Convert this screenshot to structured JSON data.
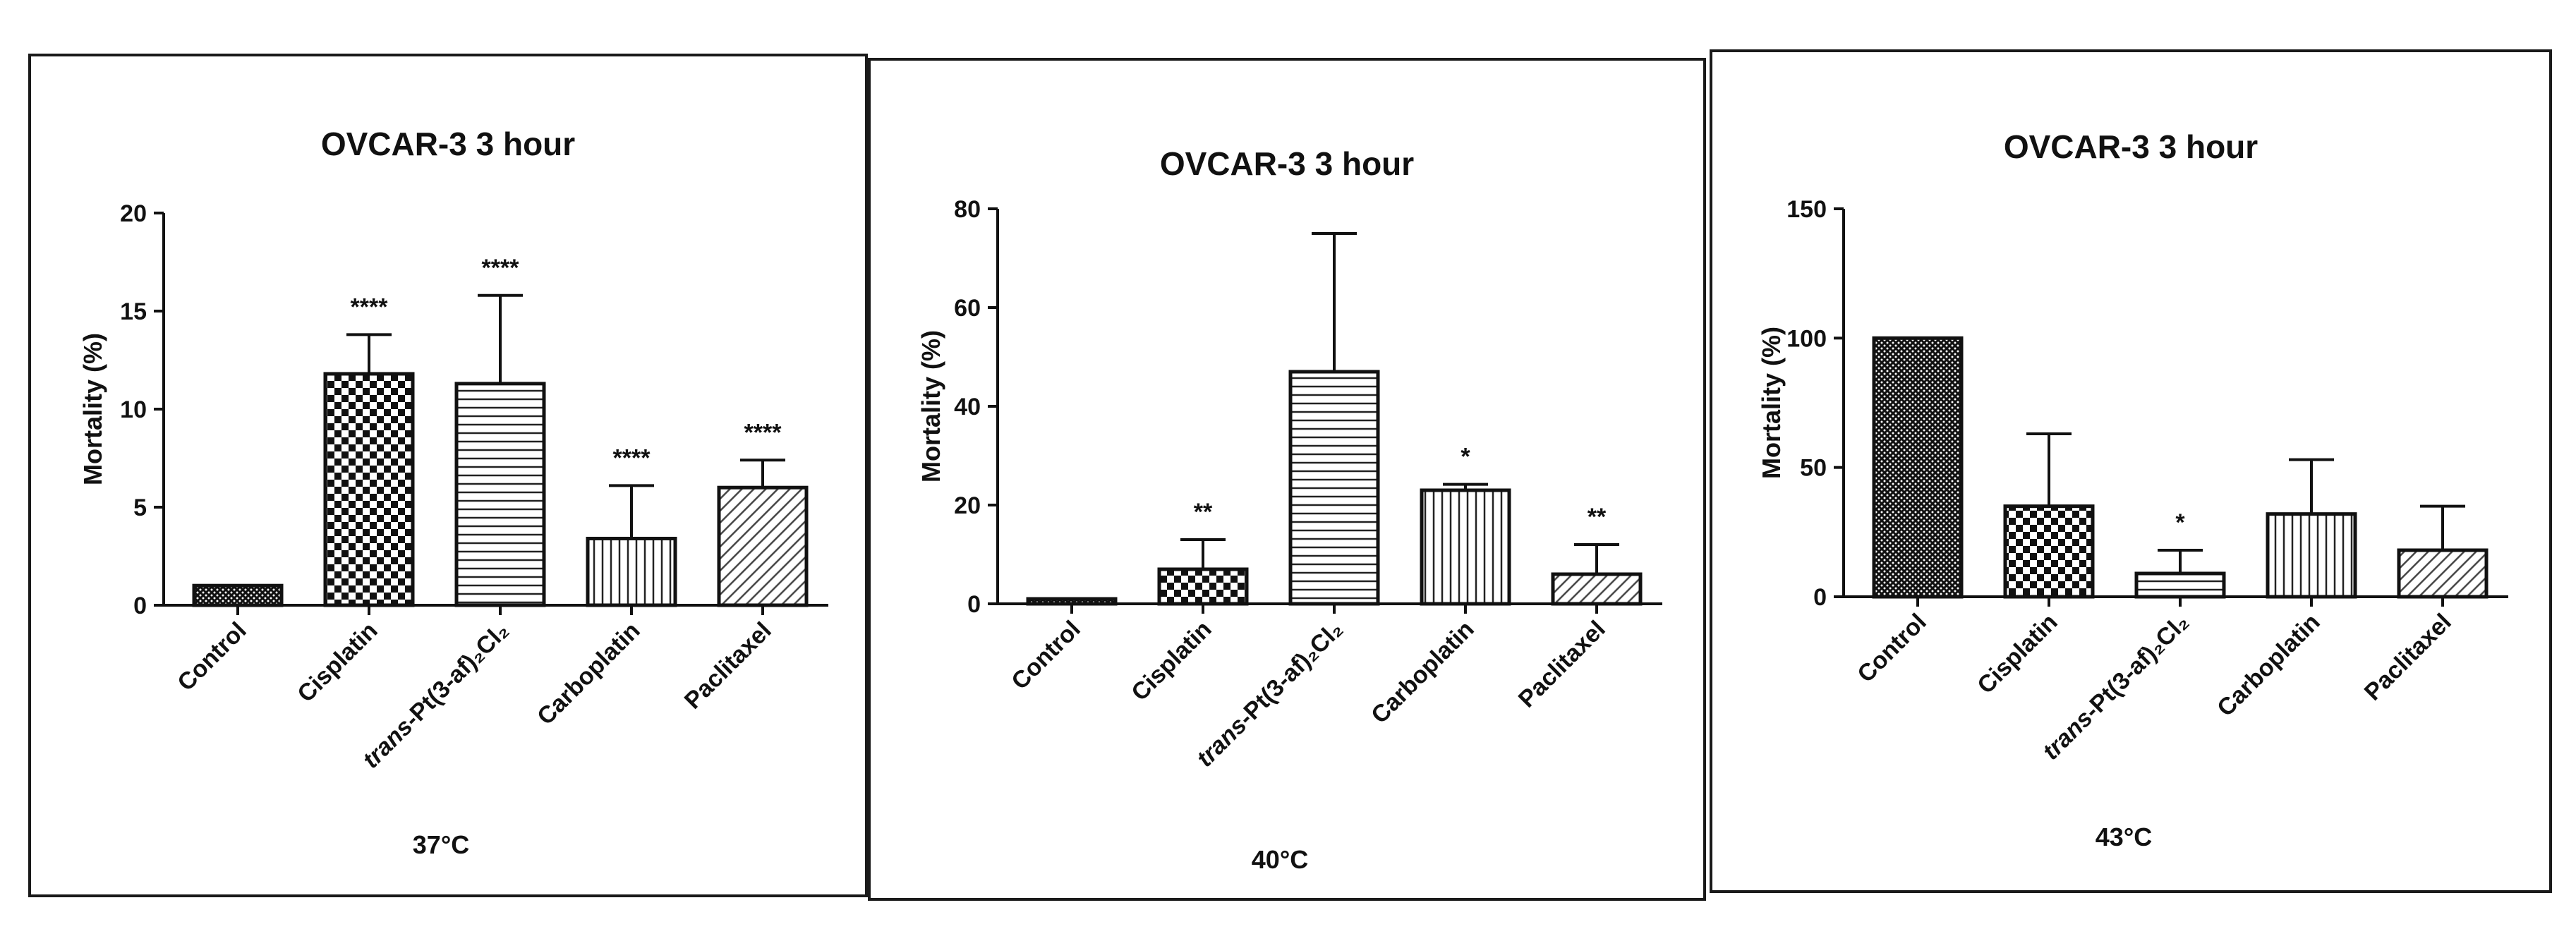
{
  "chart_data": [
    {
      "type": "bar",
      "title": "OVCAR-3 3 hour",
      "ylabel": "Mortality (%)",
      "xlabel": "37°C",
      "ylim": [
        0,
        20
      ],
      "yticks": [
        0,
        5,
        10,
        15,
        20
      ],
      "categories": [
        "Control",
        "Cisplatin",
        "trans-Pt(3-af)₂Cl₂",
        "Carboplatin",
        "Paclitaxel"
      ],
      "values": [
        1.0,
        11.8,
        11.3,
        3.4,
        6.0
      ],
      "errors": [
        0,
        2.0,
        4.5,
        2.7,
        1.4
      ],
      "significance": [
        "",
        "****",
        "****",
        "****",
        "****"
      ],
      "patterns": [
        "crosshatch-dense",
        "checker",
        "horizontal",
        "vertical",
        "diagonal"
      ]
    },
    {
      "type": "bar",
      "title": "OVCAR-3 3 hour",
      "ylabel": "Mortality (%)",
      "xlabel": "40°C",
      "ylim": [
        0,
        80
      ],
      "yticks": [
        0,
        20,
        40,
        60,
        80
      ],
      "categories": [
        "Control",
        "Cisplatin",
        "trans-Pt(3-af)₂Cl₂",
        "Carboplatin",
        "Paclitaxel"
      ],
      "values": [
        1.0,
        7.0,
        47.0,
        23.0,
        6.0
      ],
      "errors": [
        0,
        6.0,
        28.0,
        1.2,
        6.0
      ],
      "significance": [
        "",
        "**",
        "",
        "*",
        "**"
      ],
      "patterns": [
        "crosshatch-dense",
        "checker",
        "horizontal",
        "vertical",
        "diagonal"
      ]
    },
    {
      "type": "bar",
      "title": "OVCAR-3 3 hour",
      "ylabel": "Mortality (%)",
      "xlabel": "43°C",
      "ylim": [
        0,
        150
      ],
      "yticks": [
        0,
        50,
        100,
        150
      ],
      "categories": [
        "Control",
        "Cisplatin",
        "trans-Pt(3-af)₂Cl₂",
        "Carboplatin",
        "Paclitaxel"
      ],
      "values": [
        100,
        35,
        9,
        32,
        18
      ],
      "errors": [
        0,
        28,
        9,
        21,
        17
      ],
      "significance": [
        "",
        "",
        "*",
        "",
        ""
      ],
      "patterns": [
        "crosshatch-dense",
        "checker",
        "horizontal",
        "vertical",
        "diagonal"
      ]
    }
  ]
}
